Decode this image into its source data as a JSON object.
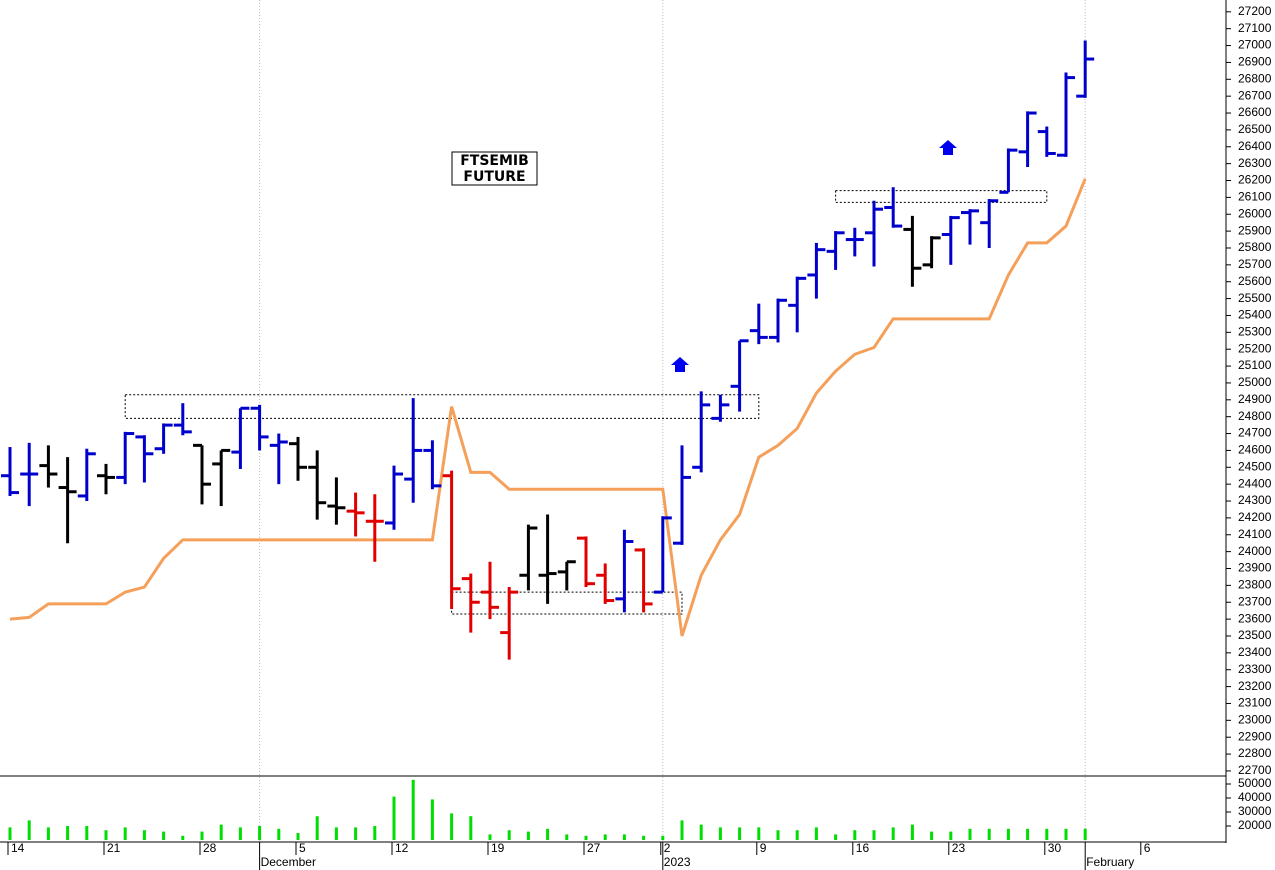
{
  "chart_data": {
    "type": "ohlc",
    "title": [
      "FTSEMIB",
      "FUTURE"
    ],
    "categories": [
      "14",
      null,
      null,
      null,
      null,
      "21",
      null,
      null,
      null,
      null,
      "28",
      null,
      null,
      null,
      null,
      "5",
      null,
      null,
      null,
      null,
      "12",
      null,
      null,
      null,
      null,
      "19",
      null,
      null,
      null,
      null,
      "27",
      null,
      null,
      null,
      "2",
      null,
      null,
      null,
      null,
      "9",
      null,
      null,
      null,
      null,
      "16",
      null,
      null,
      null,
      null,
      "23",
      null,
      null,
      null,
      null,
      "30",
      null,
      null,
      null,
      null,
      "6",
      null,
      null,
      null,
      null
    ],
    "months": [
      null,
      null,
      null,
      null,
      null,
      null,
      null,
      null,
      null,
      null,
      null,
      null,
      null,
      "December",
      null,
      null,
      null,
      null,
      null,
      null,
      null,
      null,
      null,
      null,
      null,
      null,
      null,
      null,
      null,
      null,
      null,
      null,
      null,
      null,
      "2023",
      null,
      null,
      null,
      null,
      null,
      null,
      null,
      null,
      null,
      null,
      null,
      null,
      null,
      null,
      null,
      null,
      null,
      null,
      null,
      null,
      null,
      "February",
      null,
      null,
      null,
      null,
      null,
      null,
      null
    ],
    "open": [
      24450,
      24460,
      24510,
      24380,
      24330,
      24450,
      24440,
      24680,
      24610,
      24750,
      24630,
      24520,
      24590,
      24850,
      24630,
      24640,
      24500,
      24270,
      24240,
      24180,
      24170,
      24430,
      24600,
      24450,
      23840,
      23760,
      23520,
      23860,
      23860,
      23880,
      24080,
      23860,
      23720,
      24010,
      23760,
      24050,
      24500,
      24790,
      24980,
      25310,
      25270,
      25460,
      25640,
      25780,
      25850,
      25890,
      26040,
      25910,
      25700,
      25880,
      26010,
      25950,
      26130,
      26370,
      26490,
      26350,
      26700,
      null,
      null,
      null,
      null,
      null,
      null,
      null
    ],
    "high": [
      24620,
      24645,
      24630,
      24560,
      24610,
      24520,
      24710,
      24690,
      24760,
      24880,
      24630,
      24600,
      24850,
      24870,
      24700,
      24680,
      24600,
      24440,
      24350,
      24340,
      24510,
      24910,
      24660,
      24480,
      23870,
      23940,
      23790,
      24160,
      24220,
      23940,
      24090,
      23930,
      24130,
      24020,
      24210,
      24630,
      24950,
      24930,
      25250,
      25470,
      25500,
      25630,
      25830,
      25900,
      25920,
      26080,
      26160,
      25990,
      25870,
      25990,
      26030,
      26090,
      26390,
      26610,
      26520,
      26840,
      27030,
      null,
      null,
      null,
      null,
      null,
      null,
      null
    ],
    "low": [
      24330,
      24270,
      24380,
      24050,
      24300,
      24340,
      24400,
      24410,
      24580,
      24690,
      24280,
      24270,
      24490,
      24600,
      24400,
      24420,
      24190,
      24160,
      24090,
      23940,
      24130,
      24290,
      24370,
      23660,
      23520,
      23600,
      23360,
      23770,
      23690,
      23770,
      23790,
      23690,
      23640,
      23640,
      23760,
      24040,
      24470,
      24770,
      24830,
      25230,
      25240,
      25300,
      25500,
      25670,
      25750,
      25690,
      25920,
      25570,
      25680,
      25700,
      25820,
      25800,
      26130,
      26280,
      26340,
      26340,
      26690,
      null,
      null,
      null,
      null,
      null,
      null,
      null
    ],
    "close": [
      24350,
      24460,
      24460,
      24355,
      24580,
      24440,
      24700,
      24580,
      24750,
      24710,
      24400,
      24600,
      24850,
      24680,
      24650,
      24500,
      24290,
      24260,
      24230,
      24180,
      24460,
      24600,
      24390,
      23780,
      23700,
      23670,
      23760,
      24140,
      23870,
      23940,
      23810,
      23710,
      24060,
      23690,
      24200,
      24440,
      24870,
      24870,
      25250,
      25270,
      25490,
      25620,
      25790,
      25890,
      25850,
      26030,
      25930,
      25680,
      25860,
      25980,
      26020,
      26080,
      26380,
      26600,
      26360,
      26810,
      26920,
      null,
      null,
      null,
      null,
      null,
      null,
      null
    ],
    "bar_colors": [
      "#0000cc",
      "#0000cc",
      "#000000",
      "#000000",
      "#0000cc",
      "#000000",
      "#0000cc",
      "#0000cc",
      "#0000cc",
      "#0000cc",
      "#000000",
      "#000000",
      "#0000cc",
      "#0000cc",
      "#0000cc",
      "#000000",
      "#000000",
      "#000000",
      "#e00000",
      "#e00000",
      "#0000cc",
      "#0000cc",
      "#0000cc",
      "#e00000",
      "#e00000",
      "#e00000",
      "#e00000",
      "#000000",
      "#000000",
      "#000000",
      "#e00000",
      "#e00000",
      "#0000cc",
      "#e00000",
      "#0000cc",
      "#0000cc",
      "#0000cc",
      "#0000cc",
      "#0000cc",
      "#0000cc",
      "#0000cc",
      "#0000cc",
      "#0000cc",
      "#0000cc",
      "#0000cc",
      "#0000cc",
      "#0000cc",
      "#000000",
      "#000000",
      "#0000cc",
      "#0000cc",
      "#0000cc",
      "#0000cc",
      "#0000cc",
      "#0000cc",
      "#0000cc",
      "#0000cc",
      null,
      null,
      null,
      null,
      null,
      null,
      null
    ],
    "line": {
      "color": "#f5a05a",
      "values": [
        23600,
        23610,
        23690,
        23690,
        23690,
        23690,
        23760,
        23790,
        23960,
        24070,
        24070,
        24070,
        24070,
        24070,
        24070,
        24070,
        24070,
        24070,
        24070,
        24070,
        24070,
        24070,
        24070,
        24860,
        24470,
        24470,
        24370,
        24370,
        24370,
        24370,
        24370,
        24370,
        24370,
        24370,
        24370,
        23500,
        23860,
        24070,
        24220,
        24560,
        24630,
        24730,
        24940,
        25070,
        25170,
        25210,
        25380,
        25380,
        25380,
        25380,
        25380,
        25380,
        25640,
        25830,
        25830,
        25930,
        26210,
        null,
        null,
        null,
        null,
        null,
        null,
        null
      ]
    },
    "zones": [
      {
        "from": 6,
        "to": 39,
        "low": 24790,
        "high": 24930
      },
      {
        "from": 23,
        "to": 35,
        "low": 23630,
        "high": 23760
      },
      {
        "from": 43,
        "to": 54,
        "low": 26070,
        "high": 26140
      }
    ],
    "ylim": [
      22670,
      27270
    ],
    "yticks": [
      22700,
      22800,
      22900,
      23000,
      23100,
      23200,
      23300,
      23400,
      23500,
      23600,
      23700,
      23800,
      23900,
      24000,
      24100,
      24200,
      24300,
      24400,
      24500,
      24600,
      24700,
      24800,
      24900,
      25000,
      25100,
      25200,
      25300,
      25400,
      25500,
      25600,
      25700,
      25800,
      25900,
      26000,
      26100,
      26200,
      26300,
      26400,
      26500,
      26600,
      26700,
      26800,
      26900,
      27000,
      27100,
      27200
    ],
    "volume": {
      "color": "#00dd00",
      "ylim": [
        10000,
        55000
      ],
      "yticks": [
        20000,
        30000,
        40000,
        50000
      ],
      "values": [
        19000,
        24000,
        19000,
        20000,
        20000,
        17000,
        19000,
        17000,
        16000,
        13000,
        16000,
        21000,
        19000,
        20000,
        18000,
        15000,
        27000,
        19000,
        19000,
        20000,
        41000,
        53000,
        39000,
        29000,
        27000,
        14000,
        17000,
        16000,
        18000,
        14000,
        13000,
        14000,
        14000,
        13000,
        13000,
        24000,
        21000,
        19000,
        19000,
        19000,
        17000,
        17000,
        19000,
        14000,
        17000,
        17000,
        19000,
        21000,
        16000,
        16000,
        18000,
        18000,
        18000,
        18000,
        18000,
        18000,
        18000,
        null,
        null,
        null,
        null,
        null,
        null,
        null
      ]
    }
  }
}
